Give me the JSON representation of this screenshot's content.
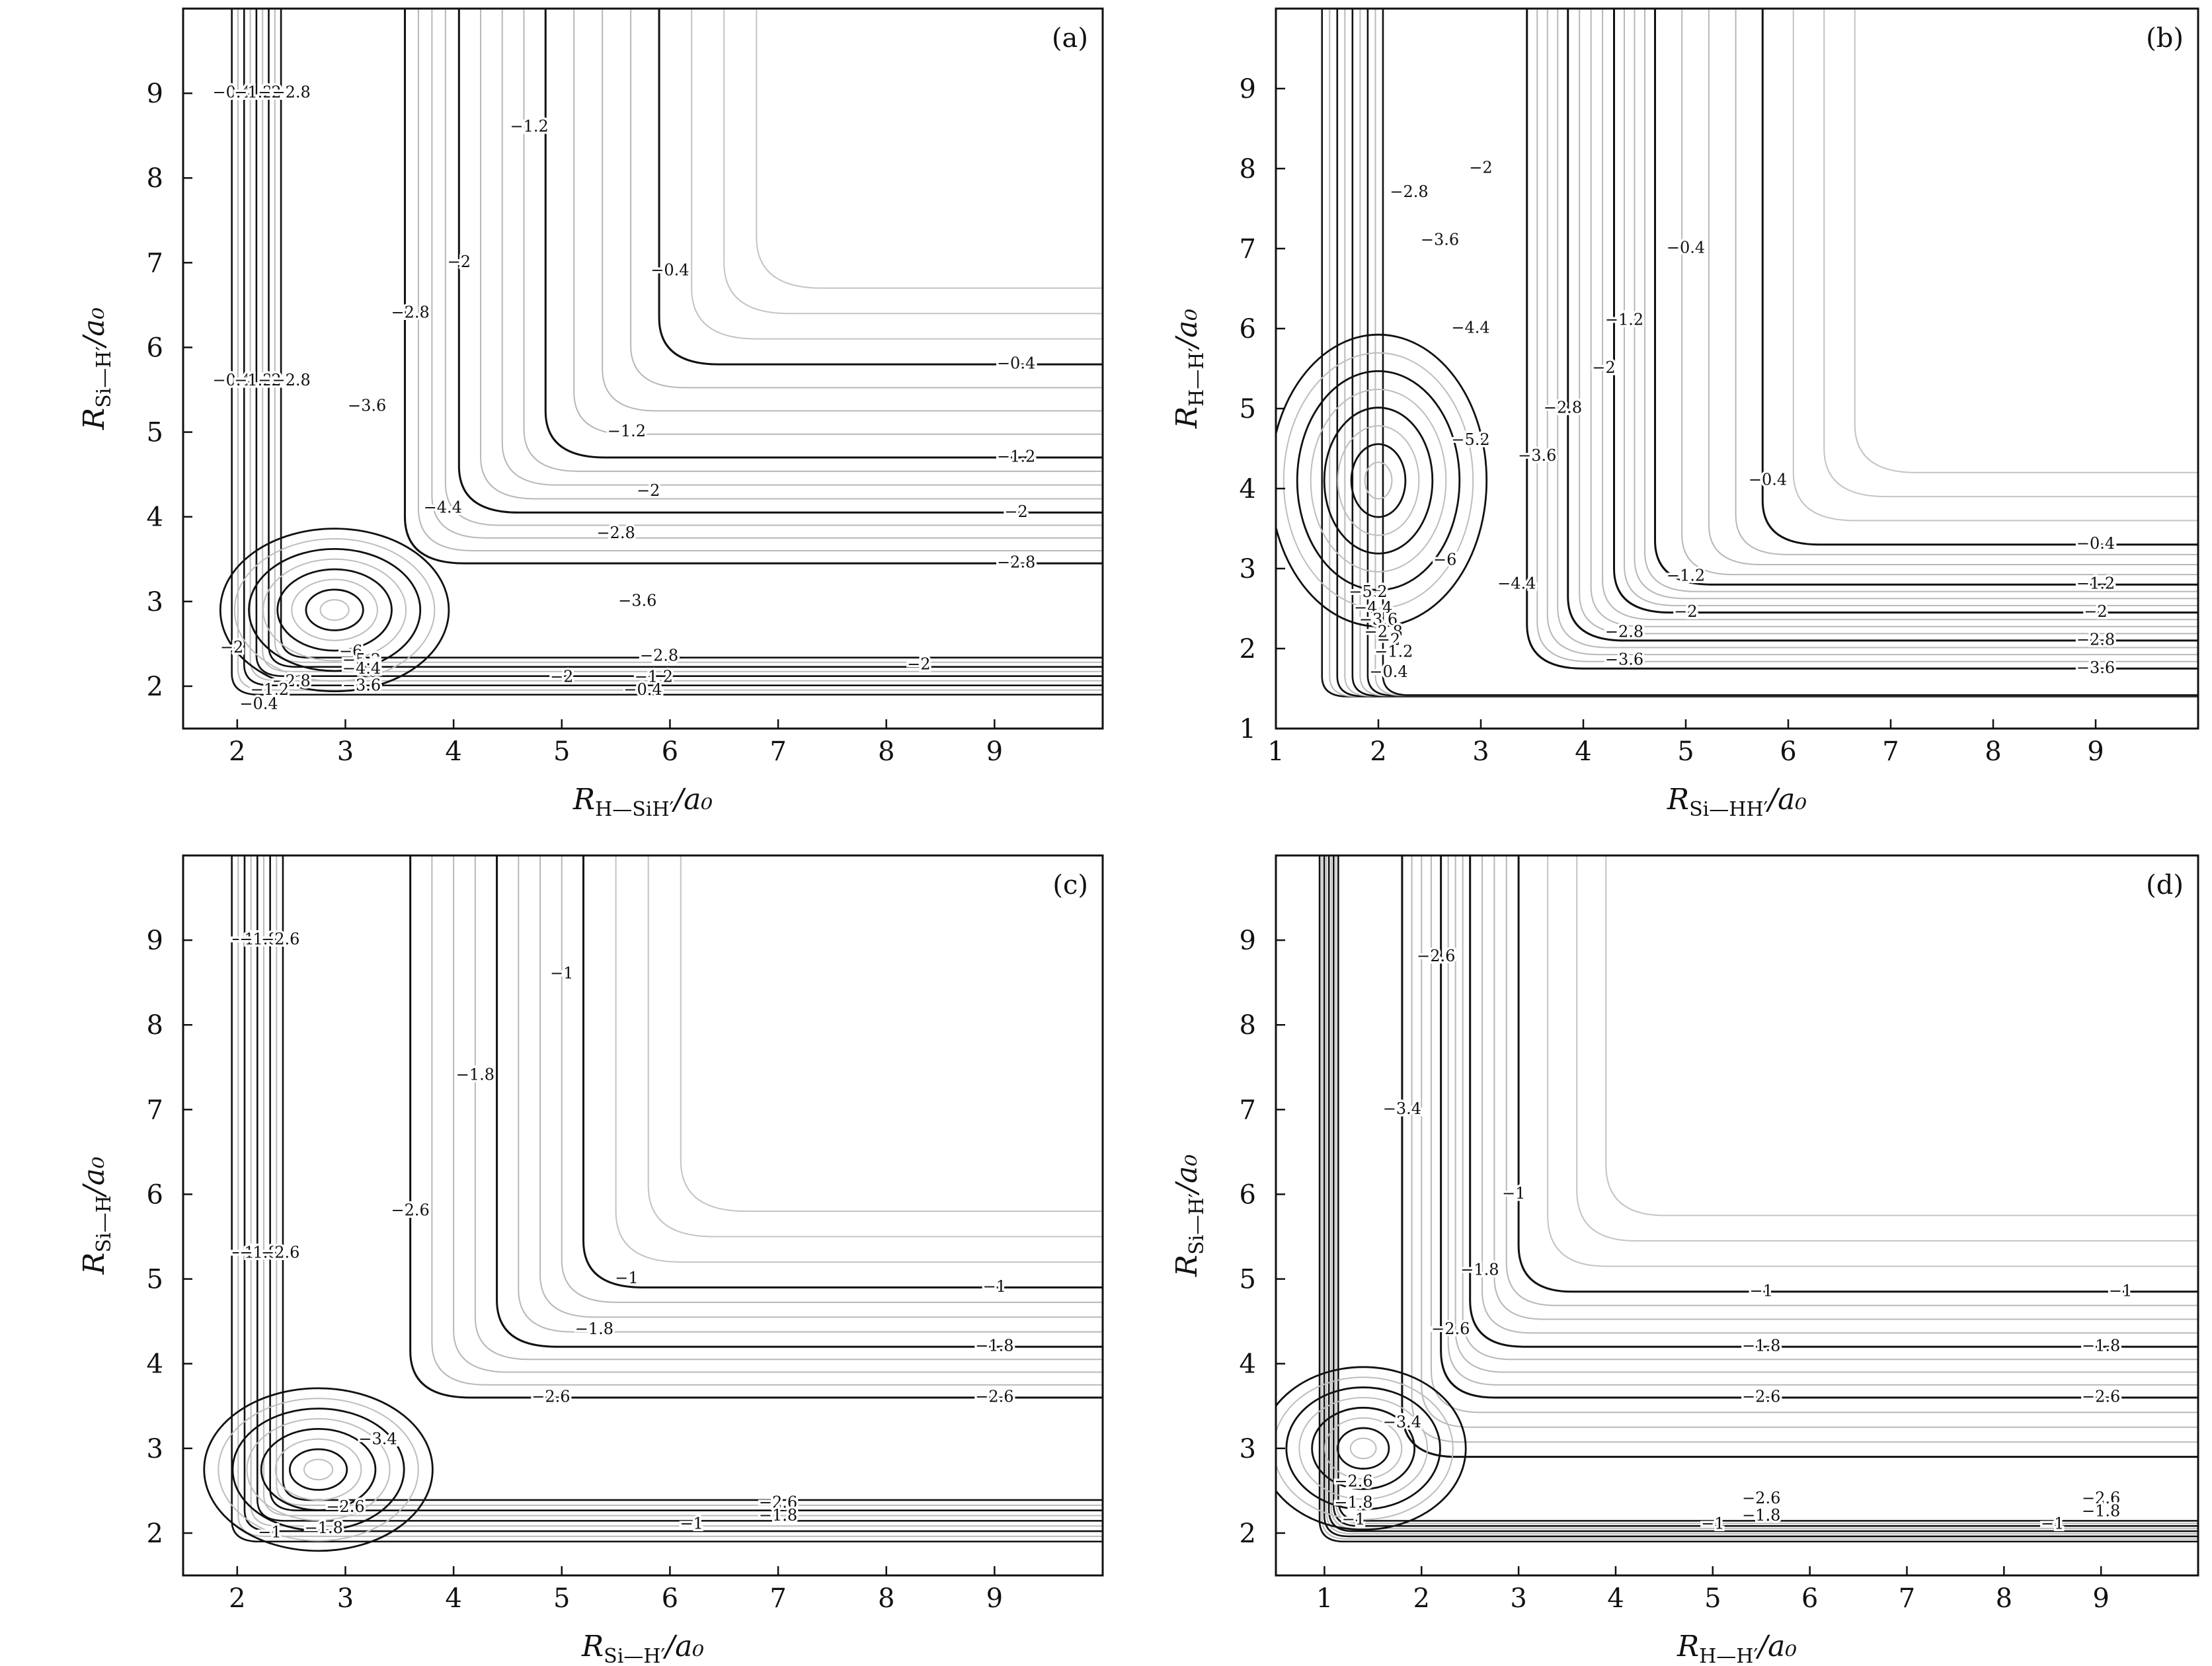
{
  "figure": {
    "panels": [
      {
        "id": "a",
        "label": "(a)",
        "xlabel": {
          "symbol": "R",
          "sub": "H—SiH′",
          "unit": "/a₀"
        },
        "ylabel": {
          "symbol": "R",
          "sub": "Si—H′",
          "unit": "/a₀"
        }
      },
      {
        "id": "b",
        "label": "(b)",
        "xlabel": {
          "symbol": "R",
          "sub": "Si—HH′",
          "unit": "/a₀"
        },
        "ylabel": {
          "symbol": "R",
          "sub": "H—H′",
          "unit": "/a₀"
        }
      },
      {
        "id": "c",
        "label": "(c)",
        "xlabel": {
          "symbol": "R",
          "sub": "Si—H′",
          "unit": "/a₀"
        },
        "ylabel": {
          "symbol": "R",
          "sub": "Si—H",
          "unit": "/a₀"
        }
      },
      {
        "id": "d",
        "label": "(d)",
        "xlabel": {
          "symbol": "R",
          "sub": "H—H′",
          "unit": "/a₀"
        },
        "ylabel": {
          "symbol": "R",
          "sub": "Si—H′",
          "unit": "/a₀"
        }
      }
    ]
  },
  "chart_data": [
    {
      "panel": "a",
      "type": "contour",
      "grid": false,
      "xlim": [
        1.5,
        10
      ],
      "ylim": [
        1.5,
        10
      ],
      "xticks": [
        2,
        3,
        4,
        5,
        6,
        7,
        8,
        9
      ],
      "yticks": [
        2,
        3,
        4,
        5,
        6,
        7,
        8,
        9
      ],
      "well": {
        "x": 2.9,
        "y": 2.9,
        "depth": -6.0,
        "label": "-6"
      },
      "asymptotes": [
        {
          "level": -0.4,
          "label": "-0.4",
          "x": 5.9,
          "y": 5.8
        },
        {
          "level": -1.2,
          "label": "-1.2",
          "x": 4.85,
          "y": 4.7
        },
        {
          "level": -2,
          "label": "-2",
          "x": 4.05,
          "y": 4.05
        },
        {
          "level": -2.8,
          "label": "-2.8",
          "x": 3.55,
          "y": 3.45
        }
      ],
      "contour_labels": [
        {
          "text": "-0.4",
          "x": 1.95,
          "y": 9.0
        },
        {
          "text": "-1.2",
          "x": 2.15,
          "y": 9.0
        },
        {
          "text": "-2",
          "x": 2.3,
          "y": 9.0
        },
        {
          "text": "-2.8",
          "x": 2.5,
          "y": 9.0
        },
        {
          "text": "-1.2",
          "x": 4.7,
          "y": 8.6
        },
        {
          "text": "-2",
          "x": 4.05,
          "y": 7.0
        },
        {
          "text": "-2.8",
          "x": 3.6,
          "y": 6.4
        },
        {
          "text": "-0.4",
          "x": 6.0,
          "y": 6.9
        },
        {
          "text": "-0.4",
          "x": 1.95,
          "y": 5.6
        },
        {
          "text": "-1.2",
          "x": 2.15,
          "y": 5.6
        },
        {
          "text": "-2",
          "x": 2.3,
          "y": 5.6
        },
        {
          "text": "-2.8",
          "x": 2.5,
          "y": 5.6
        },
        {
          "text": "-3.6",
          "x": 3.2,
          "y": 5.3
        },
        {
          "text": "-4.4",
          "x": 3.9,
          "y": 4.1
        },
        {
          "text": "-3.6",
          "x": 5.7,
          "y": 3.0
        },
        {
          "text": "-1.2",
          "x": 5.6,
          "y": 5.0
        },
        {
          "text": "-2",
          "x": 5.8,
          "y": 4.3
        },
        {
          "text": "-2.8",
          "x": 5.5,
          "y": 3.8
        },
        {
          "text": "-0.4",
          "x": 9.2,
          "y": 5.8
        },
        {
          "text": "-1.2",
          "x": 9.2,
          "y": 4.7
        },
        {
          "text": "-2",
          "x": 9.2,
          "y": 4.05
        },
        {
          "text": "-2.8",
          "x": 9.2,
          "y": 3.45
        },
        {
          "text": "-6",
          "x": 3.05,
          "y": 2.4
        },
        {
          "text": "-5.2",
          "x": 3.15,
          "y": 2.3
        },
        {
          "text": "-4.4",
          "x": 3.15,
          "y": 2.2
        },
        {
          "text": "-3.6",
          "x": 3.15,
          "y": 2.0
        },
        {
          "text": "-2.8",
          "x": 2.5,
          "y": 2.05
        },
        {
          "text": "-1.2",
          "x": 2.3,
          "y": 1.95
        },
        {
          "text": "-0.4",
          "x": 2.2,
          "y": 1.78
        },
        {
          "text": "-2",
          "x": 1.95,
          "y": 2.45
        },
        {
          "text": "-2",
          "x": 5.0,
          "y": 2.1
        },
        {
          "text": "-1.2",
          "x": 5.85,
          "y": 2.1
        },
        {
          "text": "-0.4",
          "x": 5.75,
          "y": 1.95
        },
        {
          "text": "-2.8",
          "x": 5.9,
          "y": 2.35
        },
        {
          "text": "-2",
          "x": 8.3,
          "y": 2.25
        }
      ]
    },
    {
      "panel": "b",
      "type": "contour",
      "grid": false,
      "xlim": [
        1,
        10
      ],
      "ylim": [
        1,
        10
      ],
      "xticks": [
        1,
        2,
        3,
        4,
        5,
        6,
        7,
        8,
        9
      ],
      "yticks": [
        1,
        2,
        3,
        4,
        5,
        6,
        7,
        8,
        9
      ],
      "well": {
        "x": 2.0,
        "y": 4.1,
        "depth": -6.0,
        "label": "-6"
      },
      "asymptotes": [
        {
          "level": -0.4,
          "label": "-0.4",
          "x": 5.75,
          "y": 3.3
        },
        {
          "level": -1.2,
          "label": "-1.2",
          "x": 4.7,
          "y": 2.8
        },
        {
          "level": -2,
          "label": "-2",
          "x": 4.3,
          "y": 2.45
        },
        {
          "level": -2.8,
          "label": "-2.8",
          "x": 3.85,
          "y": 2.1
        },
        {
          "level": -3.6,
          "label": "-3.6",
          "x": 3.45,
          "y": 1.75
        }
      ],
      "contour_labels": [
        {
          "text": "-0.4",
          "x": 5.0,
          "y": 7.0
        },
        {
          "text": "-1.2",
          "x": 4.4,
          "y": 6.1
        },
        {
          "text": "-2",
          "x": 3.0,
          "y": 8.0
        },
        {
          "text": "-2.8",
          "x": 2.3,
          "y": 7.7
        },
        {
          "text": "-3.6",
          "x": 2.6,
          "y": 7.1
        },
        {
          "text": "-4.4",
          "x": 2.9,
          "y": 6.0
        },
        {
          "text": "-5.2",
          "x": 2.9,
          "y": 4.6
        },
        {
          "text": "-6",
          "x": 2.65,
          "y": 3.1
        },
        {
          "text": "-2.8",
          "x": 3.8,
          "y": 5.0
        },
        {
          "text": "-2",
          "x": 4.2,
          "y": 5.5
        },
        {
          "text": "-3.6",
          "x": 3.55,
          "y": 4.4
        },
        {
          "text": "-4.4",
          "x": 3.35,
          "y": 2.8
        },
        {
          "text": "-0.4",
          "x": 5.8,
          "y": 4.1
        },
        {
          "text": "-1.2",
          "x": 5.0,
          "y": 2.9
        },
        {
          "text": "-2",
          "x": 5.0,
          "y": 2.45
        },
        {
          "text": "-2.8",
          "x": 4.4,
          "y": 2.2
        },
        {
          "text": "-3.6",
          "x": 4.4,
          "y": 1.85
        },
        {
          "text": "-0.4",
          "x": 9.0,
          "y": 3.3
        },
        {
          "text": "-1.2",
          "x": 9.0,
          "y": 2.8
        },
        {
          "text": "-2",
          "x": 9.0,
          "y": 2.45
        },
        {
          "text": "-2.8",
          "x": 9.0,
          "y": 2.1
        },
        {
          "text": "-3.6",
          "x": 9.0,
          "y": 1.75
        },
        {
          "text": "-5.2",
          "x": 1.9,
          "y": 2.7
        },
        {
          "text": "-4.4",
          "x": 1.95,
          "y": 2.5
        },
        {
          "text": "-3.6",
          "x": 2.0,
          "y": 2.35
        },
        {
          "text": "-2.8",
          "x": 2.05,
          "y": 2.2
        },
        {
          "text": "-2",
          "x": 2.1,
          "y": 2.1
        },
        {
          "text": "-1.2",
          "x": 2.15,
          "y": 1.95
        },
        {
          "text": "-0.4",
          "x": 2.1,
          "y": 1.7
        }
      ]
    },
    {
      "panel": "c",
      "type": "contour",
      "grid": false,
      "xlim": [
        1.5,
        10
      ],
      "ylim": [
        1.5,
        10
      ],
      "xticks": [
        2,
        3,
        4,
        5,
        6,
        7,
        8,
        9
      ],
      "yticks": [
        2,
        3,
        4,
        5,
        6,
        7,
        8,
        9
      ],
      "well": {
        "x": 2.75,
        "y": 2.75,
        "depth": -3.6,
        "label": "-3.4"
      },
      "asymptotes": [
        {
          "level": -1,
          "label": "-1",
          "x": 5.2,
          "y": 4.9
        },
        {
          "level": -1.8,
          "label": "-1.8",
          "x": 4.4,
          "y": 4.2
        },
        {
          "level": -2.6,
          "label": "-2.6",
          "x": 3.6,
          "y": 3.6
        }
      ],
      "contour_labels": [
        {
          "text": "-1",
          "x": 2.05,
          "y": 9.0
        },
        {
          "text": "-1.8",
          "x": 2.2,
          "y": 9.0
        },
        {
          "text": "-2.6",
          "x": 2.4,
          "y": 9.0
        },
        {
          "text": "-1",
          "x": 5.0,
          "y": 8.6
        },
        {
          "text": "-1.8",
          "x": 4.2,
          "y": 7.4
        },
        {
          "text": "-2.6",
          "x": 3.6,
          "y": 5.8
        },
        {
          "text": "-1",
          "x": 2.05,
          "y": 5.3
        },
        {
          "text": "-1.8",
          "x": 2.2,
          "y": 5.3
        },
        {
          "text": "-2.6",
          "x": 2.4,
          "y": 5.3
        },
        {
          "text": "-3.4",
          "x": 3.3,
          "y": 3.1
        },
        {
          "text": "-1",
          "x": 5.6,
          "y": 5.0
        },
        {
          "text": "-1.8",
          "x": 5.3,
          "y": 4.4
        },
        {
          "text": "-2.6",
          "x": 4.9,
          "y": 3.6
        },
        {
          "text": "-1",
          "x": 9.0,
          "y": 4.9
        },
        {
          "text": "-1.8",
          "x": 9.0,
          "y": 4.2
        },
        {
          "text": "-2.6",
          "x": 9.0,
          "y": 3.6
        },
        {
          "text": "-2.6",
          "x": 3.0,
          "y": 2.3
        },
        {
          "text": "-1.8",
          "x": 2.8,
          "y": 2.05
        },
        {
          "text": "-1",
          "x": 2.3,
          "y": 2.0
        },
        {
          "text": "-2.6",
          "x": 7.0,
          "y": 2.35
        },
        {
          "text": "-1.8",
          "x": 7.0,
          "y": 2.2
        },
        {
          "text": "-1",
          "x": 6.2,
          "y": 2.1
        }
      ]
    },
    {
      "panel": "d",
      "type": "contour",
      "grid": false,
      "xlim": [
        0.5,
        10
      ],
      "ylim": [
        1.5,
        10
      ],
      "xticks": [
        1,
        2,
        3,
        4,
        5,
        6,
        7,
        8,
        9
      ],
      "yticks": [
        2,
        3,
        4,
        5,
        6,
        7,
        8,
        9
      ],
      "well": {
        "x": 1.4,
        "y": 3.0,
        "depth": -3.8,
        "label": "-3.4"
      },
      "asymptotes": [
        {
          "level": -1,
          "label": "-1",
          "x": 3.0,
          "y": 4.85
        },
        {
          "level": -1.8,
          "label": "-1.8",
          "x": 2.5,
          "y": 4.2
        },
        {
          "level": -2.6,
          "label": "-2.6",
          "x": 2.2,
          "y": 3.6
        },
        {
          "level": -3.4,
          "label": "-3.4",
          "x": 1.8,
          "y": 2.9
        }
      ],
      "contour_labels": [
        {
          "text": "-2.6",
          "x": 2.15,
          "y": 8.8
        },
        {
          "text": "-3.4",
          "x": 1.8,
          "y": 7.0
        },
        {
          "text": "-1",
          "x": 2.95,
          "y": 6.0
        },
        {
          "text": "-1.8",
          "x": 2.6,
          "y": 5.1
        },
        {
          "text": "-2.6",
          "x": 2.3,
          "y": 4.4
        },
        {
          "text": "-3.4",
          "x": 1.8,
          "y": 3.3
        },
        {
          "text": "-1",
          "x": 5.5,
          "y": 4.85
        },
        {
          "text": "-1.8",
          "x": 5.5,
          "y": 4.2
        },
        {
          "text": "-2.6",
          "x": 5.5,
          "y": 3.6
        },
        {
          "text": "-1",
          "x": 9.2,
          "y": 4.85
        },
        {
          "text": "-1.8",
          "x": 9.0,
          "y": 4.2
        },
        {
          "text": "-2.6",
          "x": 9.0,
          "y": 3.6
        },
        {
          "text": "-2.6",
          "x": 1.3,
          "y": 2.6
        },
        {
          "text": "-1.8",
          "x": 1.3,
          "y": 2.35
        },
        {
          "text": "-1",
          "x": 1.3,
          "y": 2.15
        },
        {
          "text": "-2.6",
          "x": 5.5,
          "y": 2.4
        },
        {
          "text": "-1.8",
          "x": 5.5,
          "y": 2.2
        },
        {
          "text": "-1",
          "x": 5.0,
          "y": 2.1
        },
        {
          "text": "-2.6",
          "x": 9.0,
          "y": 2.4
        },
        {
          "text": "-1.8",
          "x": 9.0,
          "y": 2.25
        },
        {
          "text": "-1",
          "x": 8.5,
          "y": 2.1
        }
      ]
    }
  ]
}
